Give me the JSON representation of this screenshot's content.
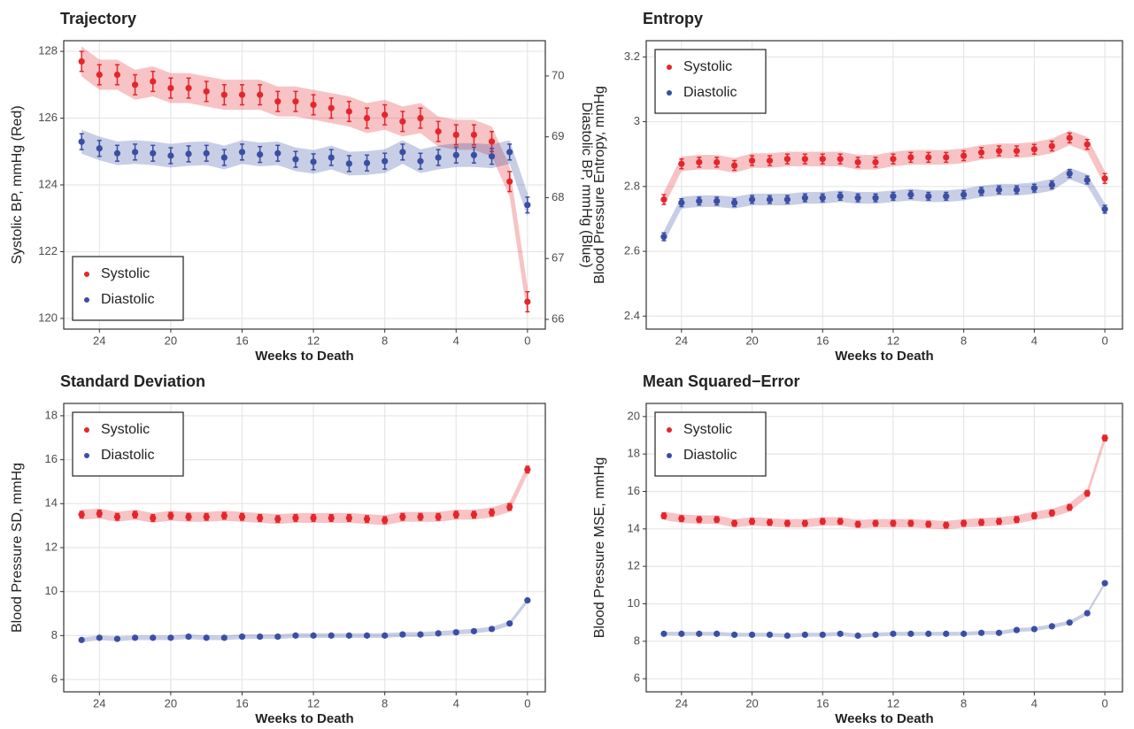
{
  "chart_data": [
    {
      "type": "line",
      "title": "Trajectory",
      "xlabel": "Weeks to Death",
      "ylabel": "Systolic BP, mmHg (Red)",
      "y2label": "Diastolic BP, mmHg  (Blue)",
      "x": [
        25,
        24,
        23,
        22,
        21,
        20,
        19,
        18,
        17,
        16,
        15,
        14,
        13,
        12,
        11,
        10,
        9,
        8,
        7,
        6,
        5,
        4,
        3,
        2,
        1,
        0
      ],
      "xlim": [
        26,
        -1
      ],
      "xticks": [
        24,
        20,
        16,
        12,
        8,
        4,
        0
      ],
      "ylim": [
        119.68,
        128.32
      ],
      "yticks": [
        120,
        122,
        124,
        126,
        128
      ],
      "y2lim": [
        65.84,
        70.58
      ],
      "y2ticks": [
        66,
        67,
        68,
        69,
        70
      ],
      "grid": true,
      "legend": "bottom-left",
      "series": [
        {
          "name": "Systolic",
          "color": "#e4262c",
          "values": [
            127.7,
            127.3,
            127.3,
            127.0,
            127.1,
            126.9,
            126.9,
            126.8,
            126.7,
            126.7,
            126.7,
            126.5,
            126.5,
            126.4,
            126.3,
            126.2,
            126.0,
            126.1,
            125.9,
            126.0,
            125.6,
            125.5,
            125.5,
            125.3,
            124.1,
            120.5
          ],
          "errors": [
            0.3,
            0.3,
            0.3,
            0.3,
            0.3,
            0.3,
            0.3,
            0.3,
            0.3,
            0.3,
            0.3,
            0.3,
            0.3,
            0.3,
            0.3,
            0.3,
            0.3,
            0.3,
            0.3,
            0.3,
            0.3,
            0.3,
            0.3,
            0.3,
            0.3,
            0.3
          ]
        },
        {
          "name": "Diastolic",
          "color": "#3a4ea3",
          "axis": "y2",
          "values": [
            68.92,
            68.81,
            68.73,
            68.75,
            68.73,
            68.69,
            68.72,
            68.73,
            68.66,
            68.75,
            68.71,
            68.73,
            68.63,
            68.59,
            68.66,
            68.56,
            68.57,
            68.6,
            68.75,
            68.6,
            68.66,
            68.7,
            68.7,
            68.68,
            68.75,
            67.88
          ],
          "errors": [
            0.13,
            0.13,
            0.13,
            0.13,
            0.13,
            0.13,
            0.13,
            0.13,
            0.13,
            0.13,
            0.13,
            0.13,
            0.13,
            0.13,
            0.13,
            0.13,
            0.13,
            0.13,
            0.13,
            0.13,
            0.13,
            0.13,
            0.13,
            0.13,
            0.13,
            0.13
          ]
        }
      ]
    },
    {
      "type": "line",
      "title": "Entropy",
      "xlabel": "Weeks to Death",
      "ylabel": "Blood Pressure Entropy, mmHg",
      "x": [
        25,
        24,
        23,
        22,
        21,
        20,
        19,
        18,
        17,
        16,
        15,
        14,
        13,
        12,
        11,
        10,
        9,
        8,
        7,
        6,
        5,
        4,
        3,
        2,
        1,
        0
      ],
      "xlim": [
        26,
        -1
      ],
      "xticks": [
        24,
        20,
        16,
        12,
        8,
        4,
        0
      ],
      "ylim": [
        2.36,
        3.25
      ],
      "yticks": [
        2.4,
        2.6,
        2.8,
        3.0,
        3.2
      ],
      "grid": true,
      "legend": "top-left",
      "series": [
        {
          "name": "Systolic",
          "color": "#e4262c",
          "values": [
            2.76,
            2.87,
            2.875,
            2.875,
            2.865,
            2.88,
            2.88,
            2.885,
            2.885,
            2.885,
            2.885,
            2.875,
            2.875,
            2.885,
            2.89,
            2.89,
            2.89,
            2.895,
            2.905,
            2.91,
            2.91,
            2.915,
            2.925,
            2.95,
            2.93,
            2.825
          ],
          "errors": [
            0.015,
            0.015,
            0.015,
            0.015,
            0.015,
            0.015,
            0.015,
            0.015,
            0.015,
            0.015,
            0.015,
            0.015,
            0.015,
            0.015,
            0.015,
            0.015,
            0.015,
            0.015,
            0.015,
            0.015,
            0.015,
            0.015,
            0.015,
            0.015,
            0.015,
            0.015
          ]
        },
        {
          "name": "Diastolic",
          "color": "#3a4ea3",
          "values": [
            2.645,
            2.75,
            2.755,
            2.755,
            2.75,
            2.76,
            2.76,
            2.76,
            2.765,
            2.765,
            2.77,
            2.765,
            2.765,
            2.77,
            2.775,
            2.77,
            2.77,
            2.775,
            2.785,
            2.79,
            2.79,
            2.795,
            2.805,
            2.84,
            2.82,
            2.73
          ],
          "errors": [
            0.012,
            0.012,
            0.012,
            0.012,
            0.012,
            0.012,
            0.012,
            0.012,
            0.012,
            0.012,
            0.012,
            0.012,
            0.012,
            0.012,
            0.012,
            0.012,
            0.012,
            0.012,
            0.012,
            0.012,
            0.012,
            0.012,
            0.012,
            0.012,
            0.012,
            0.012
          ]
        }
      ]
    },
    {
      "type": "line",
      "title": "Standard Deviation",
      "xlabel": "Weeks to Death",
      "ylabel": "Blood Pressure SD, mmHg",
      "x": [
        25,
        24,
        23,
        22,
        21,
        20,
        19,
        18,
        17,
        16,
        15,
        14,
        13,
        12,
        11,
        10,
        9,
        8,
        7,
        6,
        5,
        4,
        3,
        2,
        1,
        0
      ],
      "xlim": [
        26,
        -1
      ],
      "xticks": [
        24,
        20,
        16,
        12,
        8,
        4,
        0
      ],
      "ylim": [
        5.44,
        18.56
      ],
      "yticks": [
        6,
        8,
        10,
        12,
        14,
        16,
        18
      ],
      "grid": true,
      "legend": "top-left",
      "series": [
        {
          "name": "Systolic",
          "color": "#e4262c",
          "values": [
            13.5,
            13.55,
            13.4,
            13.5,
            13.35,
            13.45,
            13.4,
            13.4,
            13.45,
            13.4,
            13.35,
            13.3,
            13.35,
            13.35,
            13.35,
            13.35,
            13.3,
            13.25,
            13.4,
            13.4,
            13.4,
            13.5,
            13.5,
            13.6,
            13.85,
            15.55
          ],
          "errors": [
            0.15,
            0.15,
            0.15,
            0.15,
            0.15,
            0.15,
            0.15,
            0.15,
            0.15,
            0.15,
            0.15,
            0.15,
            0.15,
            0.15,
            0.15,
            0.15,
            0.15,
            0.15,
            0.15,
            0.15,
            0.15,
            0.15,
            0.15,
            0.15,
            0.15,
            0.15
          ]
        },
        {
          "name": "Diastolic",
          "color": "#3a4ea3",
          "values": [
            7.8,
            7.9,
            7.85,
            7.9,
            7.9,
            7.9,
            7.95,
            7.9,
            7.9,
            7.95,
            7.95,
            7.95,
            8.0,
            8.0,
            8.0,
            8.0,
            8.0,
            8.0,
            8.05,
            8.05,
            8.1,
            8.15,
            8.2,
            8.3,
            8.55,
            9.6
          ],
          "errors": [
            0.07,
            0.07,
            0.07,
            0.07,
            0.07,
            0.07,
            0.07,
            0.07,
            0.07,
            0.07,
            0.07,
            0.07,
            0.07,
            0.07,
            0.07,
            0.07,
            0.07,
            0.07,
            0.07,
            0.07,
            0.07,
            0.07,
            0.07,
            0.07,
            0.07,
            0.07
          ]
        }
      ]
    },
    {
      "type": "line",
      "title": "Mean Squared−Error",
      "xlabel": "Weeks to Death",
      "ylabel": "Blood Pressure MSE, mmHg",
      "x": [
        25,
        24,
        23,
        22,
        21,
        20,
        19,
        18,
        17,
        16,
        15,
        14,
        13,
        12,
        11,
        10,
        9,
        8,
        7,
        6,
        5,
        4,
        3,
        2,
        1,
        0
      ],
      "xlim": [
        26,
        -1
      ],
      "xticks": [
        24,
        20,
        16,
        12,
        8,
        4,
        0
      ],
      "ylim": [
        5.3,
        20.7
      ],
      "yticks": [
        6,
        8,
        10,
        12,
        14,
        16,
        18,
        20
      ],
      "grid": true,
      "legend": "top-left",
      "series": [
        {
          "name": "Systolic",
          "color": "#e4262c",
          "values": [
            14.7,
            14.55,
            14.5,
            14.5,
            14.3,
            14.4,
            14.35,
            14.3,
            14.3,
            14.4,
            14.4,
            14.25,
            14.3,
            14.3,
            14.3,
            14.25,
            14.2,
            14.3,
            14.35,
            14.4,
            14.5,
            14.7,
            14.85,
            15.15,
            15.9,
            18.85
          ],
          "errors": [
            0.15,
            0.15,
            0.15,
            0.15,
            0.15,
            0.15,
            0.15,
            0.15,
            0.15,
            0.15,
            0.15,
            0.15,
            0.15,
            0.15,
            0.15,
            0.15,
            0.15,
            0.15,
            0.15,
            0.15,
            0.15,
            0.15,
            0.15,
            0.15,
            0.15,
            0.15
          ]
        },
        {
          "name": "Diastolic",
          "color": "#3a4ea3",
          "values": [
            8.4,
            8.4,
            8.4,
            8.4,
            8.35,
            8.35,
            8.35,
            8.3,
            8.35,
            8.35,
            8.4,
            8.3,
            8.35,
            8.4,
            8.4,
            8.4,
            8.4,
            8.4,
            8.45,
            8.45,
            8.6,
            8.65,
            8.8,
            9.0,
            9.5,
            11.1
          ],
          "errors": [
            0.07,
            0.07,
            0.07,
            0.07,
            0.07,
            0.07,
            0.07,
            0.07,
            0.07,
            0.07,
            0.07,
            0.07,
            0.07,
            0.07,
            0.07,
            0.07,
            0.07,
            0.07,
            0.07,
            0.07,
            0.07,
            0.07,
            0.07,
            0.07,
            0.07,
            0.07
          ]
        }
      ]
    }
  ]
}
